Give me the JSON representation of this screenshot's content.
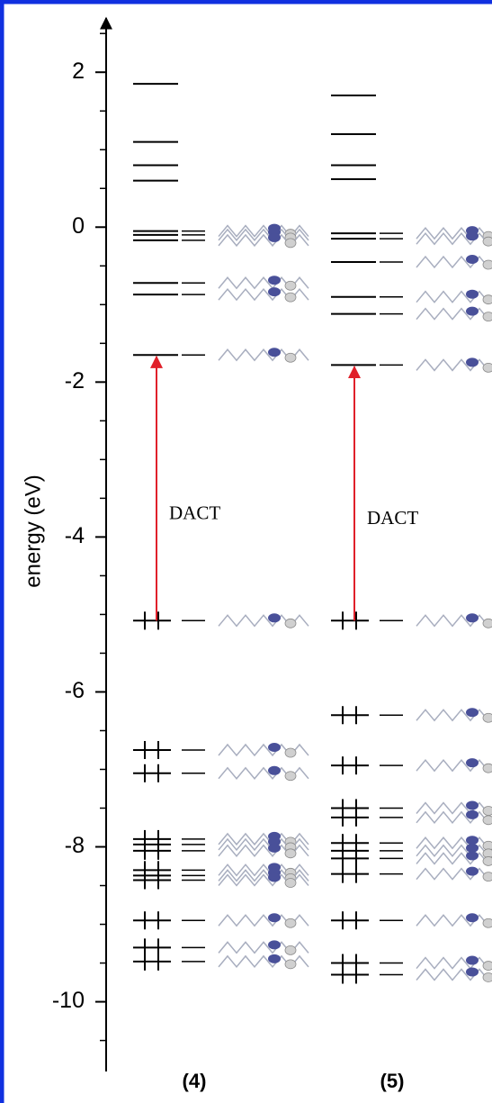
{
  "chart_data": {
    "type": "energy-levels",
    "ylabel": "energy (eV)",
    "ylim": [
      -10.9,
      2.7
    ],
    "yticks": [
      -10,
      -8,
      -6,
      -4,
      -2,
      0,
      2
    ],
    "yminorticks": [
      -10.5,
      -9.5,
      -9,
      -8.5,
      -7.5,
      -7,
      -6.5,
      -5.5,
      -5,
      -4.5,
      -3.5,
      -3,
      -2.5,
      -1.5,
      -1,
      -0.5,
      0.5,
      1,
      1.5,
      2.5
    ],
    "series": [
      {
        "name": "(4)",
        "color": "#000000",
        "unoccupied": [
          1.85,
          1.1,
          0.8,
          0.6,
          -0.05,
          -0.1,
          -0.17,
          -0.72,
          -0.87,
          -1.65
        ],
        "occupied": [
          -5.08,
          -6.75,
          -7.05,
          -7.9,
          -7.97,
          -8.05,
          -8.3,
          -8.37,
          -8.43,
          -8.95,
          -9.3,
          -9.48
        ],
        "annotation": "DACT",
        "arrow_color": "#e0202a"
      },
      {
        "name": "(5)",
        "color": "#000000",
        "unoccupied": [
          1.7,
          1.2,
          0.8,
          0.62,
          -0.08,
          -0.15,
          -0.45,
          -0.9,
          -1.12,
          -1.78
        ],
        "occupied": [
          -5.08,
          -6.3,
          -6.95,
          -7.5,
          -7.62,
          -7.95,
          -8.05,
          -8.15,
          -8.35,
          -8.95,
          -9.5,
          -9.65
        ],
        "annotation": "DACT",
        "arrow_color": "#e0202a"
      }
    ],
    "frame_color": "#1030e0"
  }
}
